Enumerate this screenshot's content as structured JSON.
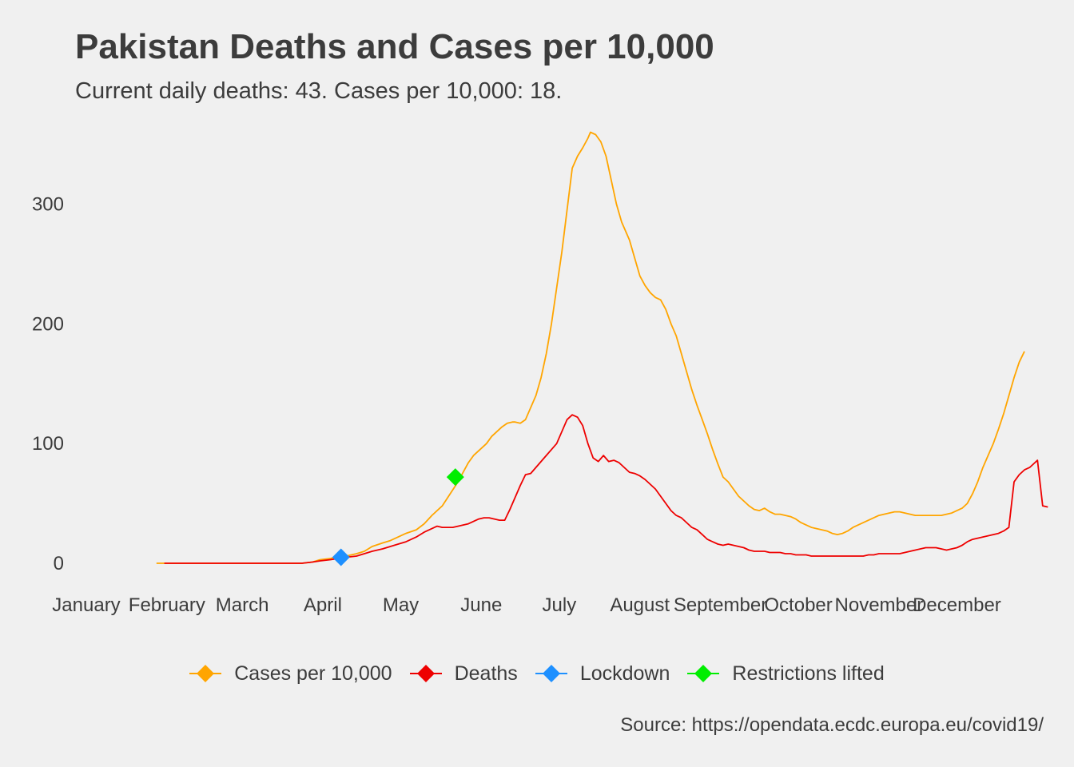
{
  "chart_data": {
    "type": "line",
    "title": "Pakistan Deaths and Cases per 10,000",
    "subtitle": "Current daily deaths: 43. Cases per 10,000: 18.",
    "caption": "Source: https://opendata.ecdc.europa.eu/covid19/",
    "xlabel": "",
    "ylabel": "",
    "x_tick_labels": [
      "January",
      "February",
      "March",
      "April",
      "May",
      "June",
      "July",
      "August",
      "September",
      "October",
      "November",
      "December"
    ],
    "y_ticks": [
      0,
      100,
      200,
      300
    ],
    "y_tick_labels": [
      "0",
      "100",
      "200",
      "300"
    ],
    "ylim": [
      -22,
      367
    ],
    "xlim_day": [
      1,
      354
    ],
    "grid": false,
    "legend_position": "bottom",
    "series": [
      {
        "name": "Cases per 10,000",
        "color": "#ffa500",
        "points": [
          [
            28,
            0
          ],
          [
            30,
            0
          ],
          [
            84,
            0
          ],
          [
            88,
            1
          ],
          [
            91,
            3
          ],
          [
            95,
            4
          ],
          [
            98,
            6
          ],
          [
            101,
            6
          ],
          [
            105,
            8
          ],
          [
            108,
            10
          ],
          [
            111,
            14
          ],
          [
            115,
            17
          ],
          [
            118,
            19
          ],
          [
            121,
            22
          ],
          [
            124,
            25
          ],
          [
            128,
            28
          ],
          [
            131,
            33
          ],
          [
            134,
            40
          ],
          [
            138,
            48
          ],
          [
            141,
            58
          ],
          [
            144,
            68
          ],
          [
            146,
            76
          ],
          [
            148,
            84
          ],
          [
            150,
            90
          ],
          [
            153,
            96
          ],
          [
            155,
            100
          ],
          [
            157,
            106
          ],
          [
            159,
            110
          ],
          [
            161,
            114
          ],
          [
            163,
            117
          ],
          [
            165,
            118
          ],
          [
            166,
            118
          ],
          [
            168,
            117
          ],
          [
            170,
            120
          ],
          [
            172,
            130
          ],
          [
            174,
            140
          ],
          [
            176,
            155
          ],
          [
            178,
            175
          ],
          [
            180,
            200
          ],
          [
            182,
            230
          ],
          [
            184,
            260
          ],
          [
            186,
            295
          ],
          [
            188,
            330
          ],
          [
            190,
            340
          ],
          [
            192,
            347
          ],
          [
            194,
            355
          ],
          [
            195,
            360
          ],
          [
            197,
            358
          ],
          [
            199,
            352
          ],
          [
            201,
            340
          ],
          [
            203,
            320
          ],
          [
            205,
            300
          ],
          [
            207,
            285
          ],
          [
            210,
            270
          ],
          [
            212,
            255
          ],
          [
            214,
            240
          ],
          [
            216,
            232
          ],
          [
            218,
            226
          ],
          [
            220,
            222
          ],
          [
            222,
            220
          ],
          [
            224,
            212
          ],
          [
            226,
            200
          ],
          [
            228,
            190
          ],
          [
            230,
            175
          ],
          [
            232,
            160
          ],
          [
            234,
            145
          ],
          [
            236,
            132
          ],
          [
            238,
            120
          ],
          [
            240,
            108
          ],
          [
            242,
            95
          ],
          [
            244,
            83
          ],
          [
            246,
            72
          ],
          [
            248,
            68
          ],
          [
            250,
            62
          ],
          [
            252,
            56
          ],
          [
            254,
            52
          ],
          [
            256,
            48
          ],
          [
            258,
            45
          ],
          [
            260,
            44
          ],
          [
            262,
            46
          ],
          [
            264,
            43
          ],
          [
            266,
            41
          ],
          [
            268,
            41
          ],
          [
            270,
            40
          ],
          [
            272,
            39
          ],
          [
            274,
            37
          ],
          [
            276,
            34
          ],
          [
            278,
            32
          ],
          [
            280,
            30
          ],
          [
            282,
            29
          ],
          [
            284,
            28
          ],
          [
            286,
            27
          ],
          [
            288,
            25
          ],
          [
            290,
            24
          ],
          [
            292,
            25
          ],
          [
            294,
            27
          ],
          [
            296,
            30
          ],
          [
            298,
            32
          ],
          [
            300,
            34
          ],
          [
            302,
            36
          ],
          [
            304,
            38
          ],
          [
            306,
            40
          ],
          [
            308,
            41
          ],
          [
            310,
            42
          ],
          [
            312,
            43
          ],
          [
            314,
            43
          ],
          [
            316,
            42
          ],
          [
            318,
            41
          ],
          [
            320,
            40
          ],
          [
            322,
            40
          ],
          [
            324,
            40
          ],
          [
            326,
            40
          ],
          [
            328,
            40
          ],
          [
            330,
            40
          ],
          [
            332,
            41
          ],
          [
            334,
            42
          ],
          [
            336,
            44
          ],
          [
            338,
            46
          ],
          [
            340,
            50
          ],
          [
            342,
            58
          ],
          [
            344,
            68
          ],
          [
            346,
            80
          ],
          [
            348,
            90
          ],
          [
            350,
            100
          ],
          [
            352,
            112
          ],
          [
            354,
            125
          ],
          [
            356,
            140
          ],
          [
            358,
            155
          ],
          [
            360,
            168
          ],
          [
            362,
            177
          ]
        ]
      },
      {
        "name": "Deaths",
        "color": "#ee0000",
        "points": [
          [
            31,
            0
          ],
          [
            84,
            0
          ],
          [
            88,
            1
          ],
          [
            91,
            2
          ],
          [
            95,
            3
          ],
          [
            98,
            4
          ],
          [
            101,
            5
          ],
          [
            105,
            6
          ],
          [
            108,
            8
          ],
          [
            111,
            10
          ],
          [
            115,
            12
          ],
          [
            118,
            14
          ],
          [
            121,
            16
          ],
          [
            124,
            18
          ],
          [
            128,
            22
          ],
          [
            131,
            26
          ],
          [
            134,
            29
          ],
          [
            136,
            31
          ],
          [
            138,
            30
          ],
          [
            140,
            30
          ],
          [
            142,
            30
          ],
          [
            144,
            31
          ],
          [
            146,
            32
          ],
          [
            148,
            33
          ],
          [
            150,
            35
          ],
          [
            152,
            37
          ],
          [
            154,
            38
          ],
          [
            156,
            38
          ],
          [
            158,
            37
          ],
          [
            160,
            36
          ],
          [
            162,
            36
          ],
          [
            164,
            45
          ],
          [
            166,
            55
          ],
          [
            168,
            65
          ],
          [
            170,
            74
          ],
          [
            172,
            75
          ],
          [
            174,
            80
          ],
          [
            176,
            85
          ],
          [
            178,
            90
          ],
          [
            180,
            95
          ],
          [
            182,
            100
          ],
          [
            184,
            110
          ],
          [
            186,
            120
          ],
          [
            188,
            124
          ],
          [
            190,
            122
          ],
          [
            192,
            115
          ],
          [
            194,
            100
          ],
          [
            196,
            88
          ],
          [
            198,
            85
          ],
          [
            200,
            90
          ],
          [
            202,
            85
          ],
          [
            204,
            86
          ],
          [
            206,
            84
          ],
          [
            208,
            80
          ],
          [
            210,
            76
          ],
          [
            212,
            75
          ],
          [
            214,
            73
          ],
          [
            216,
            70
          ],
          [
            218,
            66
          ],
          [
            220,
            62
          ],
          [
            222,
            56
          ],
          [
            224,
            50
          ],
          [
            226,
            44
          ],
          [
            228,
            40
          ],
          [
            230,
            38
          ],
          [
            232,
            34
          ],
          [
            234,
            30
          ],
          [
            236,
            28
          ],
          [
            238,
            24
          ],
          [
            240,
            20
          ],
          [
            242,
            18
          ],
          [
            244,
            16
          ],
          [
            246,
            15
          ],
          [
            248,
            16
          ],
          [
            250,
            15
          ],
          [
            252,
            14
          ],
          [
            254,
            13
          ],
          [
            256,
            11
          ],
          [
            258,
            10
          ],
          [
            260,
            10
          ],
          [
            262,
            10
          ],
          [
            264,
            9
          ],
          [
            266,
            9
          ],
          [
            268,
            9
          ],
          [
            270,
            8
          ],
          [
            272,
            8
          ],
          [
            274,
            7
          ],
          [
            276,
            7
          ],
          [
            278,
            7
          ],
          [
            280,
            6
          ],
          [
            282,
            6
          ],
          [
            284,
            6
          ],
          [
            286,
            6
          ],
          [
            288,
            6
          ],
          [
            290,
            6
          ],
          [
            292,
            6
          ],
          [
            294,
            6
          ],
          [
            296,
            6
          ],
          [
            298,
            6
          ],
          [
            300,
            6
          ],
          [
            302,
            7
          ],
          [
            304,
            7
          ],
          [
            306,
            8
          ],
          [
            308,
            8
          ],
          [
            310,
            8
          ],
          [
            312,
            8
          ],
          [
            314,
            8
          ],
          [
            316,
            9
          ],
          [
            318,
            10
          ],
          [
            320,
            11
          ],
          [
            322,
            12
          ],
          [
            324,
            13
          ],
          [
            326,
            13
          ],
          [
            328,
            13
          ],
          [
            330,
            12
          ],
          [
            332,
            11
          ],
          [
            334,
            12
          ],
          [
            336,
            13
          ],
          [
            338,
            15
          ],
          [
            340,
            18
          ],
          [
            342,
            20
          ],
          [
            344,
            21
          ],
          [
            346,
            22
          ],
          [
            348,
            23
          ],
          [
            350,
            24
          ],
          [
            352,
            25
          ],
          [
            354,
            27
          ],
          [
            356,
            30
          ],
          [
            358,
            68
          ],
          [
            360,
            74
          ],
          [
            362,
            78
          ],
          [
            364,
            80
          ],
          [
            366,
            84
          ],
          [
            367,
            86
          ],
          [
            369,
            48
          ],
          [
            371,
            47
          ]
        ]
      }
    ],
    "markers": [
      {
        "name": "Lockdown",
        "color": "#1e90ff",
        "day": 99,
        "value": 5
      },
      {
        "name": "Restrictions lifted",
        "color": "#00ee00",
        "day": 143,
        "value": 72
      }
    ]
  }
}
